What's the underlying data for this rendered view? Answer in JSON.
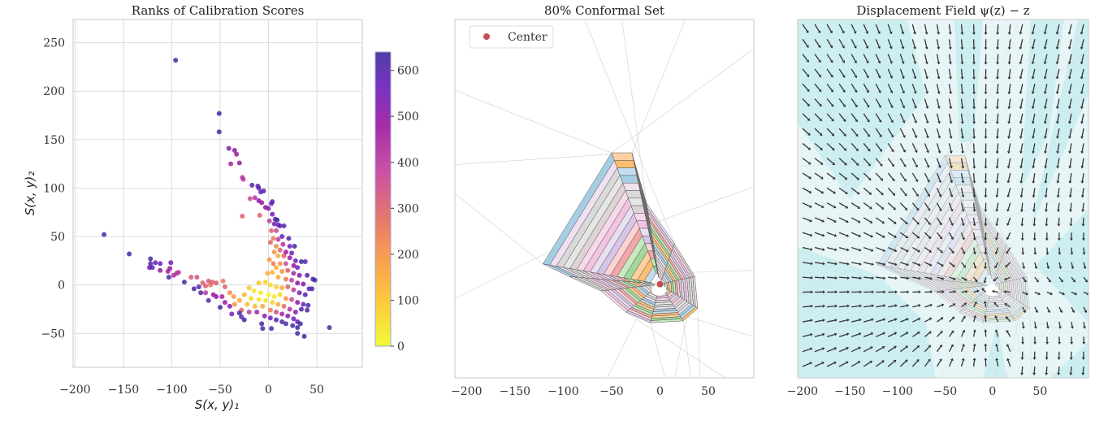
{
  "chart_data": [
    {
      "type": "scatter",
      "title": "Ranks of Calibration Scores",
      "xlabel": "S(x, y)₁",
      "ylabel": "S(x, y)₂",
      "xlim": [
        -202,
        97
      ],
      "ylim": [
        -85,
        274
      ],
      "xticks": [
        -200,
        -150,
        -100,
        -50,
        0,
        50
      ],
      "yticks": [
        -50,
        0,
        50,
        100,
        150,
        200,
        250
      ],
      "grid": true,
      "colormap": "plasma_r",
      "colorbar": {
        "range": [
          0,
          640
        ],
        "ticks": [
          0,
          100,
          200,
          300,
          400,
          500,
          600
        ]
      },
      "points": [
        [
          -96,
          232,
          620
        ],
        [
          -51,
          177,
          620
        ],
        [
          -51,
          158,
          620
        ],
        [
          -170,
          52,
          620
        ],
        [
          -144,
          32,
          620
        ],
        [
          63,
          -44,
          620
        ],
        [
          37,
          -53,
          620
        ],
        [
          -41,
          141,
          520
        ],
        [
          -35,
          139,
          500
        ],
        [
          -33,
          135,
          480
        ],
        [
          -39,
          125,
          450
        ],
        [
          -30,
          126,
          480
        ],
        [
          -27,
          111,
          400
        ],
        [
          -26,
          109,
          380
        ],
        [
          -17,
          103,
          600
        ],
        [
          -11,
          102,
          600
        ],
        [
          -10,
          100,
          580
        ],
        [
          -8,
          96,
          560
        ],
        [
          -5,
          97,
          600
        ],
        [
          -19,
          89,
          350
        ],
        [
          -10,
          87,
          520
        ],
        [
          -14,
          90,
          420
        ],
        [
          -7,
          85,
          480
        ],
        [
          4,
          86,
          600
        ],
        [
          3,
          84,
          560
        ],
        [
          -3,
          80,
          500
        ],
        [
          0,
          79,
          520
        ],
        [
          -27,
          71,
          300
        ],
        [
          -9,
          72,
          300
        ],
        [
          4,
          73,
          560
        ],
        [
          7,
          68,
          580
        ],
        [
          9,
          67,
          620
        ],
        [
          1,
          66,
          400
        ],
        [
          6,
          63,
          520
        ],
        [
          10,
          62,
          560
        ],
        [
          12,
          61,
          600
        ],
        [
          16,
          61,
          600
        ],
        [
          3,
          56,
          300
        ],
        [
          8,
          56,
          380
        ],
        [
          14,
          50,
          560
        ],
        [
          21,
          48,
          600
        ],
        [
          5,
          48,
          250
        ],
        [
          10,
          47,
          400
        ],
        [
          2,
          44,
          300
        ],
        [
          15,
          42,
          420
        ],
        [
          22,
          40,
          560
        ],
        [
          27,
          40,
          620
        ],
        [
          8,
          40,
          220
        ],
        [
          12,
          36,
          300
        ],
        [
          18,
          34,
          480
        ],
        [
          24,
          33,
          560
        ],
        [
          6,
          34,
          200
        ],
        [
          10,
          30,
          150
        ],
        [
          16,
          30,
          300
        ],
        [
          22,
          28,
          500
        ],
        [
          28,
          25,
          560
        ],
        [
          34,
          24,
          620
        ],
        [
          38,
          24,
          600
        ],
        [
          1,
          26,
          200
        ],
        [
          5,
          22,
          250
        ],
        [
          12,
          22,
          200
        ],
        [
          18,
          22,
          350
        ],
        [
          26,
          20,
          480
        ],
        [
          30,
          18,
          560
        ],
        [
          8,
          18,
          150
        ],
        [
          14,
          14,
          200
        ],
        [
          20,
          15,
          300
        ],
        [
          26,
          12,
          450
        ],
        [
          32,
          10,
          520
        ],
        [
          40,
          10,
          600
        ],
        [
          46,
          6,
          620
        ],
        [
          48,
          5,
          620
        ],
        [
          -1,
          12,
          150
        ],
        [
          4,
          13,
          130
        ],
        [
          10,
          8,
          150
        ],
        [
          18,
          6,
          250
        ],
        [
          24,
          5,
          400
        ],
        [
          30,
          2,
          500
        ],
        [
          36,
          1,
          520
        ],
        [
          42,
          -4,
          600
        ],
        [
          45,
          -4,
          620
        ],
        [
          -10,
          2,
          100
        ],
        [
          -3,
          3,
          80
        ],
        [
          2,
          0,
          60
        ],
        [
          8,
          -2,
          80
        ],
        [
          14,
          -3,
          150
        ],
        [
          20,
          -2,
          300
        ],
        [
          26,
          -5,
          400
        ],
        [
          32,
          -8,
          560
        ],
        [
          38,
          -10,
          600
        ],
        [
          -20,
          -3,
          100
        ],
        [
          -15,
          -6,
          40
        ],
        [
          -8,
          -8,
          20
        ],
        [
          0,
          -10,
          10
        ],
        [
          6,
          -12,
          30
        ],
        [
          12,
          -10,
          60
        ],
        [
          18,
          -14,
          200
        ],
        [
          24,
          -15,
          350
        ],
        [
          30,
          -18,
          500
        ],
        [
          36,
          -20,
          560
        ],
        [
          41,
          -21,
          620
        ],
        [
          -25,
          -10,
          130
        ],
        [
          -18,
          -14,
          60
        ],
        [
          -10,
          -15,
          40
        ],
        [
          -3,
          -16,
          50
        ],
        [
          4,
          -18,
          80
        ],
        [
          10,
          -20,
          150
        ],
        [
          16,
          -22,
          280
        ],
        [
          22,
          -25,
          420
        ],
        [
          28,
          -28,
          520
        ],
        [
          34,
          -25,
          600
        ],
        [
          40,
          -26,
          620
        ],
        [
          -30,
          -16,
          150
        ],
        [
          -22,
          -20,
          120
        ],
        [
          -14,
          -22,
          120
        ],
        [
          -6,
          -22,
          160
        ],
        [
          2,
          -26,
          250
        ],
        [
          8,
          -28,
          350
        ],
        [
          14,
          -30,
          450
        ],
        [
          20,
          -32,
          520
        ],
        [
          26,
          -35,
          560
        ],
        [
          30,
          -38,
          600
        ],
        [
          33,
          -40,
          620
        ],
        [
          -35,
          -20,
          200
        ],
        [
          -28,
          -26,
          300
        ],
        [
          -20,
          -28,
          400
        ],
        [
          -12,
          -28,
          450
        ],
        [
          -4,
          -32,
          520
        ],
        [
          2,
          -34,
          560
        ],
        [
          8,
          -36,
          600
        ],
        [
          14,
          -38,
          600
        ],
        [
          18,
          -40,
          620
        ],
        [
          25,
          -42,
          620
        ],
        [
          30,
          -44,
          640
        ],
        [
          -7,
          -40,
          620
        ],
        [
          -6,
          -45,
          620
        ],
        [
          3,
          -45,
          620
        ],
        [
          30,
          -50,
          620
        ],
        [
          -30,
          -29,
          600
        ],
        [
          -28,
          -33,
          580
        ],
        [
          -25,
          -36,
          620
        ],
        [
          -38,
          -30,
          520
        ],
        [
          -40,
          -22,
          520
        ],
        [
          -45,
          -18,
          480
        ],
        [
          -50,
          -23,
          620
        ],
        [
          -48,
          -12,
          450
        ],
        [
          -54,
          -12,
          500
        ],
        [
          -57,
          -10,
          480
        ],
        [
          -62,
          -16,
          600
        ],
        [
          -65,
          -8,
          400
        ],
        [
          -70,
          -8,
          620
        ],
        [
          -72,
          -2,
          600
        ],
        [
          -77,
          -4,
          620
        ],
        [
          -68,
          2,
          300
        ],
        [
          -62,
          4,
          320
        ],
        [
          -58,
          3,
          300
        ],
        [
          -54,
          2,
          320
        ],
        [
          -47,
          4,
          250
        ],
        [
          -45,
          -2,
          300
        ],
        [
          -40,
          -8,
          220
        ],
        [
          -36,
          -12,
          180
        ],
        [
          -80,
          8,
          320
        ],
        [
          -74,
          8,
          330
        ],
        [
          -87,
          3,
          620
        ],
        [
          -60,
          0,
          260
        ],
        [
          -65,
          -1,
          300
        ],
        [
          -101,
          23,
          550
        ],
        [
          -102,
          17,
          480
        ],
        [
          -104,
          14,
          460
        ],
        [
          -98,
          10,
          430
        ],
        [
          -95,
          12,
          420
        ],
        [
          -93,
          13,
          400
        ],
        [
          -103,
          8,
          620
        ],
        [
          -112,
          22,
          560
        ],
        [
          -117,
          23,
          580
        ],
        [
          -112,
          15,
          500
        ],
        [
          -122,
          27,
          620
        ],
        [
          -122,
          22,
          600
        ],
        [
          -120,
          18,
          560
        ],
        [
          -123,
          18,
          580
        ]
      ]
    },
    {
      "type": "polygon-set",
      "title": "80% Conformal Set",
      "xlim": [
        -212,
        97
      ],
      "ylim": [
        -97,
        274
      ],
      "xticks": [
        -200,
        -150,
        -100,
        -50,
        0,
        50
      ],
      "grid": false,
      "center": [
        0,
        0
      ],
      "legend": {
        "placement": "top-left",
        "entries": [
          {
            "label": "Center",
            "color": "#c44e52"
          }
        ]
      }
    },
    {
      "type": "quiver",
      "title": "Displacement Field ψ(z) − z",
      "xlim": [
        -205,
        101
      ],
      "ylim": [
        -98,
        279
      ],
      "xticks": [
        -200,
        -150,
        -100,
        -50,
        0,
        50
      ],
      "grid": false,
      "colors": {
        "background": "#e8f5f6",
        "wedge": "#cdeef1",
        "arrow": "#333333"
      }
    }
  ]
}
